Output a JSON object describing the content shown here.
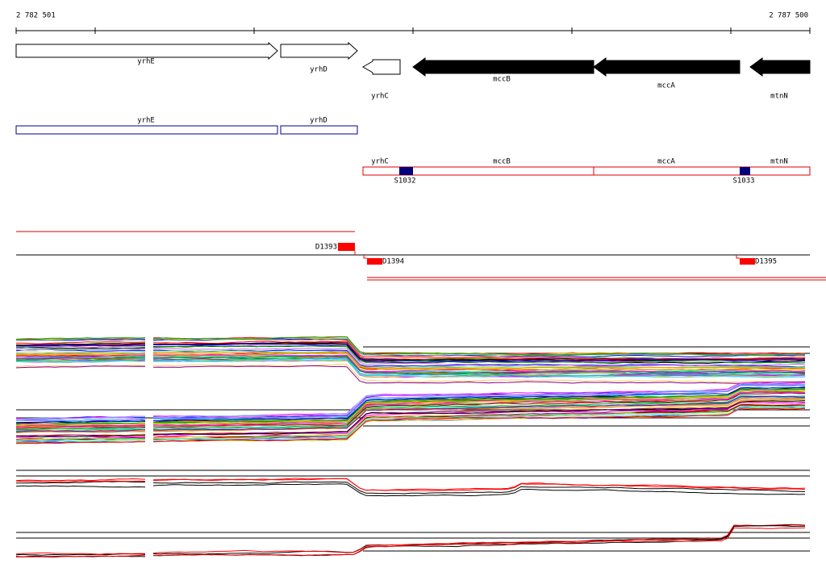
{
  "ruler": {
    "start": "2 782 501",
    "end": "2 787 500"
  },
  "genes": [
    {
      "label": "yrhE"
    },
    {
      "label": "yrhD"
    },
    {
      "label": "yrhC"
    },
    {
      "label": "mccB"
    },
    {
      "label": "mccA"
    },
    {
      "label": "mtnN"
    }
  ],
  "transcripts": [
    {
      "label": "yrhE"
    },
    {
      "label": "yrhD"
    }
  ],
  "operon": [
    {
      "label": "yrhC"
    },
    {
      "label": "mccB"
    },
    {
      "label": "mccA"
    },
    {
      "label": "mtnN"
    }
  ],
  "segments": [
    {
      "label": "S1032"
    },
    {
      "label": "S1033"
    }
  ],
  "deletions": [
    {
      "label": "D1393"
    },
    {
      "label": "D1394"
    },
    {
      "label": "D1395"
    }
  ]
}
